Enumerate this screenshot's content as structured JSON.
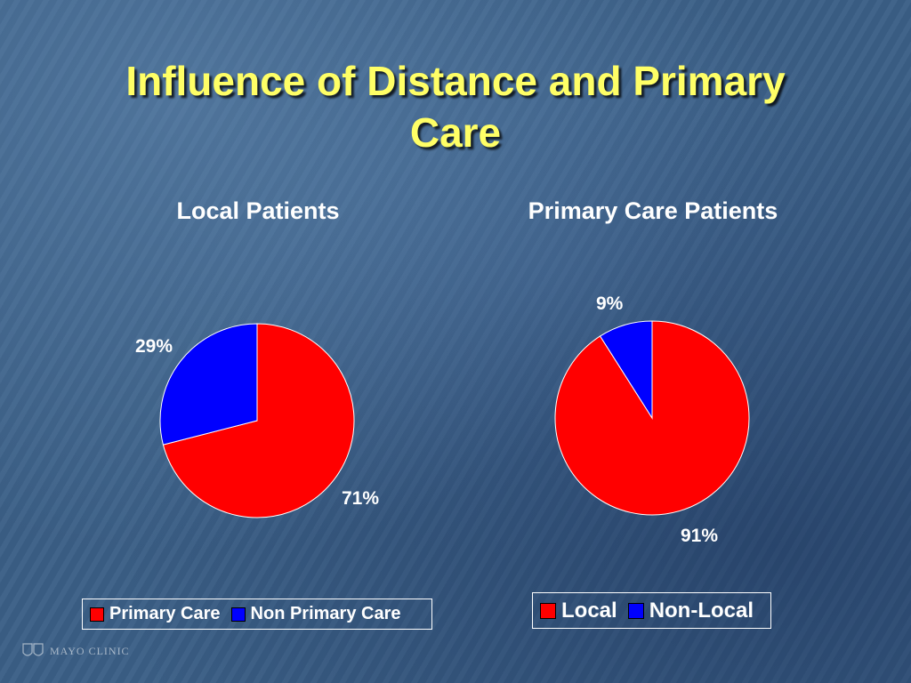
{
  "slide": {
    "title_line1": "Influence of Distance and Primary",
    "title_line2": "Care",
    "logo_text": "MAYO CLINIC"
  },
  "colors": {
    "red": "#ff0000",
    "blue": "#0000ff",
    "title": "#ffff66"
  },
  "chart_data": [
    {
      "type": "pie",
      "title": "Local Patients",
      "slices": [
        {
          "name": "Primary Care",
          "value": 71,
          "label": "71%",
          "color": "#ff0000"
        },
        {
          "name": "Non Primary Care",
          "value": 29,
          "label": "29%",
          "color": "#0000ff"
        }
      ],
      "legend": [
        "Primary Care",
        "Non Primary Care"
      ],
      "legend_position": "bottom"
    },
    {
      "type": "pie",
      "title": "Primary Care Patients",
      "slices": [
        {
          "name": "Local",
          "value": 91,
          "label": "91%",
          "color": "#ff0000"
        },
        {
          "name": "Non-Local",
          "value": 9,
          "label": "9%",
          "color": "#0000ff"
        }
      ],
      "legend": [
        "Local",
        "Non-Local"
      ],
      "legend_position": "bottom"
    }
  ]
}
